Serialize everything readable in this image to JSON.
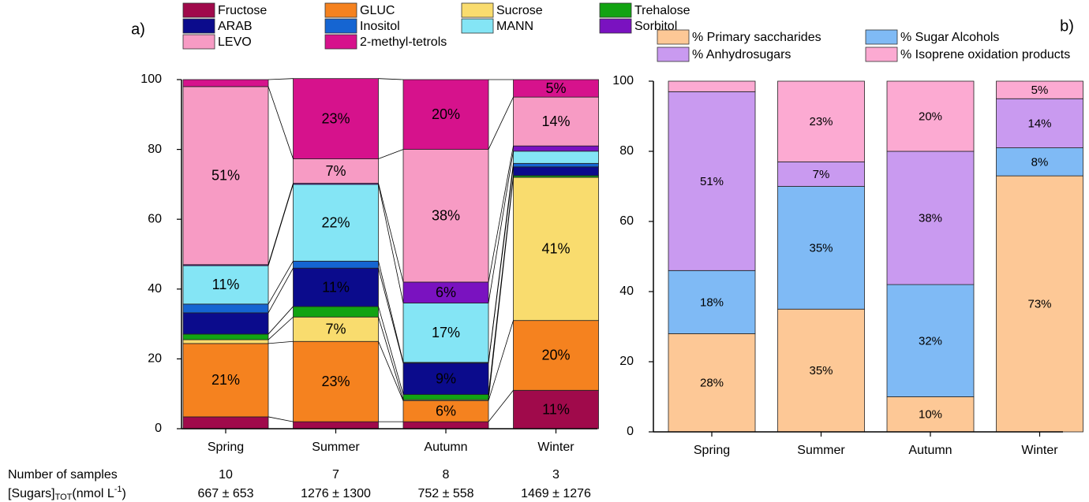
{
  "chart_data": [
    {
      "type": "bar",
      "stacked": true,
      "panel_label": "a)",
      "categories": [
        "Spring",
        "Summer",
        "Autumn",
        "Winter"
      ],
      "series": [
        {
          "name": "Fructose",
          "color": "#a00a4b",
          "values": [
            3.4,
            2,
            2,
            11
          ],
          "value_labels": [
            null,
            null,
            null,
            "11%"
          ]
        },
        {
          "name": "GLUC",
          "color": "#f5821f",
          "values": [
            21,
            23,
            6,
            20
          ],
          "value_labels": [
            "21%",
            "23%",
            "6%",
            "20%"
          ]
        },
        {
          "name": "Sucrose",
          "color": "#f9dc6e",
          "values": [
            1.1,
            7,
            0.3,
            41
          ],
          "value_labels": [
            null,
            "7%",
            null,
            "41%"
          ]
        },
        {
          "name": "Trehalose",
          "color": "#12a312",
          "values": [
            1.6,
            3,
            1.5,
            0.5
          ],
          "value_labels": [
            null,
            null,
            null,
            null
          ]
        },
        {
          "name": "ARAB",
          "color": "#0b0b8c",
          "values": [
            6.1,
            11,
            9,
            2.5
          ],
          "value_labels": [
            null,
            "11%",
            "9%",
            null
          ]
        },
        {
          "name": "Inositol",
          "color": "#1565d2",
          "values": [
            2.5,
            2,
            0.2,
            1
          ],
          "value_labels": [
            null,
            null,
            null,
            null
          ]
        },
        {
          "name": "MANN",
          "color": "#84e5f5",
          "values": [
            11,
            22,
            17,
            3.5
          ],
          "value_labels": [
            "11%",
            "22%",
            "17%",
            null
          ]
        },
        {
          "name": "Sorbitol",
          "color": "#7a12c0",
          "values": [
            0.3,
            0.3,
            6,
            1.5
          ],
          "value_labels": [
            null,
            null,
            "6%",
            null
          ]
        },
        {
          "name": "LEVO",
          "color": "#f79bc4",
          "values": [
            51,
            7,
            38,
            14
          ],
          "value_labels": [
            "51%",
            "7%",
            "38%",
            "14%"
          ]
        },
        {
          "name": "2-methyl-tetrols",
          "color": "#d6128c",
          "values": [
            2,
            23,
            20,
            5
          ],
          "value_labels": [
            null,
            "23%",
            "20%",
            "5%"
          ]
        }
      ],
      "ylim": [
        0,
        100
      ],
      "yticks": [
        0,
        20,
        40,
        60,
        80,
        100
      ]
    },
    {
      "type": "bar",
      "stacked": true,
      "panel_label": "b)",
      "categories": [
        "Spring",
        "Summer",
        "Autumn",
        "Winter"
      ],
      "series": [
        {
          "name": "% Primary saccharides",
          "color": "#fdc896",
          "values": [
            28,
            35,
            10,
            73
          ],
          "value_labels": [
            "28%",
            "35%",
            "10%",
            "73%"
          ]
        },
        {
          "name": "% Sugar Alcohols",
          "color": "#7fbaf5",
          "values": [
            18,
            35,
            32,
            8
          ],
          "value_labels": [
            "18%",
            "35%",
            "32%",
            "8%"
          ]
        },
        {
          "name": "% Anhydrosugars",
          "color": "#c99af0",
          "values": [
            51,
            7,
            38,
            14
          ],
          "value_labels": [
            "51%",
            "7%",
            "38%",
            "14%"
          ]
        },
        {
          "name": "% Isoprene oxidation products",
          "color": "#fcaad2",
          "values": [
            3,
            23,
            20,
            5
          ],
          "value_labels": [
            null,
            "23%",
            "20%",
            "5%"
          ]
        }
      ],
      "ylim": [
        0,
        100
      ],
      "yticks": [
        0,
        20,
        40,
        60,
        80,
        100
      ]
    }
  ],
  "table": {
    "samples_label": "Number of samples",
    "samples": [
      "10",
      "7",
      "8",
      "3"
    ],
    "sugars_label": [
      "[Sugars]",
      "TOT",
      "(nmol L",
      "-1",
      ")"
    ],
    "sugars": [
      "667 ± 653",
      "1276 ± 1300",
      "752 ± 558",
      "1469 ± 1276"
    ]
  }
}
